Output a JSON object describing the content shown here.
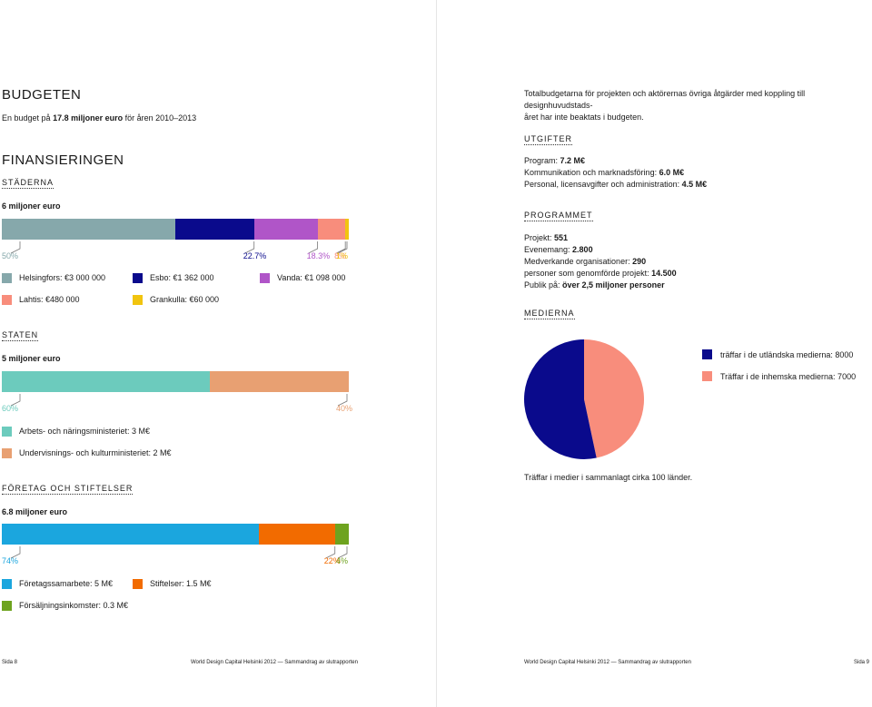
{
  "colors": {
    "helsingfors": "#86a8ab",
    "esbo": "#0a0a8c",
    "vanda": "#b055c8",
    "lahtis": "#f88d7c",
    "grankulla": "#f1c40f",
    "arbets": "#6ccbbd",
    "undervisnings": "#e8a072",
    "foretag": "#1ba6de",
    "stiftelser": "#f26b00",
    "forsaljning": "#6ea31f"
  },
  "left": {
    "budget_title": "BUDGETEN",
    "budget_sub_pre": "En budget på ",
    "budget_sub_bold": "17.8 miljoner euro",
    "budget_sub_post": " för åren 2010–2013",
    "fin_title": "FINANSIERINGEN",
    "staderna": {
      "heading": "STÄDERNA",
      "total": "6 miljoner euro",
      "segments": [
        {
          "name": "Helsingfors",
          "value": 0.5,
          "pct": "50%",
          "legend": "Helsingfors: €3 000 000"
        },
        {
          "name": "Esbo",
          "value": 0.227,
          "pct": "22.7%",
          "legend": "Esbo: €1 362 000"
        },
        {
          "name": "Vanda",
          "value": 0.183,
          "pct": "18.3%",
          "legend": "Vanda: €1 098 000"
        },
        {
          "name": "Lahtis",
          "value": 0.08,
          "pct": "8%",
          "legend": "Lahtis: €480 000"
        },
        {
          "name": "Grankulla",
          "value": 0.01,
          "pct": "1%",
          "legend": "Grankulla: €60 000"
        }
      ]
    },
    "staten": {
      "heading": "STATEN",
      "total": "5 miljoner euro",
      "segments": [
        {
          "name": "Arbets",
          "value": 0.6,
          "pct": "60%",
          "legend": "Arbets- och näringsministeriet: 3 M€"
        },
        {
          "name": "Undervisnings",
          "value": 0.4,
          "pct": "40%",
          "legend": "Undervisnings- och kulturministeriet: 2 M€"
        }
      ]
    },
    "foretag": {
      "heading": "FÖRETAG OCH STIFTELSER",
      "total": "6.8 miljoner euro",
      "segments": [
        {
          "name": "Foretag",
          "value": 0.74,
          "pct": "74%",
          "legend": "Företagssamarbete: 5 M€"
        },
        {
          "name": "Stiftelser",
          "value": 0.22,
          "pct": "22%",
          "legend": "Stiftelser: 1.5 M€"
        },
        {
          "name": "Forsaljning",
          "value": 0.04,
          "pct": "4%",
          "legend": "Försäljningsinkomster: 0.3 M€"
        }
      ]
    },
    "footer_page": "Sida 8",
    "footer_title": "World Design Capital Helsinki 2012 — Sammandrag av slutrapporten"
  },
  "right": {
    "intro_line1": "Totalbudgetarna för projekten och aktörernas övriga åtgärder med koppling till designhuvudstads-",
    "intro_line2": "året har inte beaktats i budgeten.",
    "utgifter": {
      "heading": "UTGIFTER",
      "rows": [
        {
          "label": "Program: ",
          "value": "7.2 M€"
        },
        {
          "label": "Kommunikation och marknadsföring: ",
          "value": "6.0 M€"
        },
        {
          "label": "Personal, licensavgifter och administration: ",
          "value": "4.5 M€"
        }
      ]
    },
    "programmet": {
      "heading": "PROGRAMMET",
      "rows": [
        {
          "label": "Projekt: ",
          "value": "551"
        },
        {
          "label": "Evenemang: ",
          "value": "2.800"
        },
        {
          "label": "Medverkande organisationer: ",
          "value": "290"
        },
        {
          "label": "personer som genomförde projekt: ",
          "value": "14.500"
        },
        {
          "label": "Publik på: ",
          "value": "över 2,5 miljoner personer"
        }
      ]
    },
    "medierna": {
      "heading": "MEDIERNA",
      "note": "Träffar i medier i sammanlagt cirka 100 länder."
    },
    "footer_title": "World Design Capital Helsinki 2012 — Sammandrag av slutrapporten",
    "footer_page": "Sida 9"
  },
  "chart_data": {
    "type": "pie",
    "series": [
      {
        "name": "träffar i de utländska medierna: 8000",
        "value": 8000,
        "color": "#0a0a8c"
      },
      {
        "name": "Träffar i de inhemska medierna: 7000",
        "value": 7000,
        "color": "#f88d7c"
      }
    ]
  }
}
